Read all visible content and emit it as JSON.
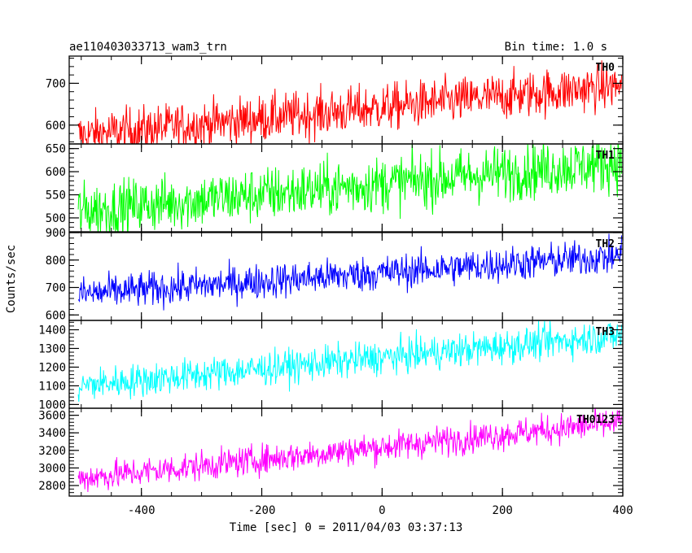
{
  "chart_data": {
    "type": "line",
    "title": "ae110403033713_wam3_trn",
    "bin_time_label": "Bin time: 1.0 s",
    "xlabel": "Time [sec] 0 = 2011/04/03 03:37:13",
    "ylabel": "Counts/sec",
    "xlim": [
      -520,
      400
    ],
    "xticks": [
      -400,
      -200,
      0,
      200,
      400
    ],
    "x_range_data": [
      -505,
      398
    ],
    "panels": [
      {
        "name": "TH0",
        "color": "#ff0000",
        "ylim": [
          555,
          765
        ],
        "yticks": [
          600,
          700
        ],
        "trend_start": 575,
        "trend_end": 695,
        "noise": 28
      },
      {
        "name": "TH1",
        "color": "#00ff00",
        "ylim": [
          470,
          660
        ],
        "yticks": [
          500,
          550,
          600,
          650
        ],
        "trend_start": 515,
        "trend_end": 620,
        "noise": 30
      },
      {
        "name": "TH2",
        "color": "#0000ff",
        "ylim": [
          580,
          900
        ],
        "yticks": [
          600,
          700,
          800,
          900
        ],
        "trend_start": 675,
        "trend_end": 815,
        "noise": 32
      },
      {
        "name": "TH3",
        "color": "#00ffff",
        "ylim": [
          980,
          1450
        ],
        "yticks": [
          1000,
          1100,
          1200,
          1300,
          1400
        ],
        "trend_start": 1100,
        "trend_end": 1370,
        "noise": 45
      },
      {
        "name": "TH0123",
        "color": "#ff00ff",
        "ylim": [
          2680,
          3680
        ],
        "yticks": [
          2800,
          3000,
          3200,
          3400,
          3600
        ],
        "trend_start": 2880,
        "trend_end": 3520,
        "noise": 85
      }
    ]
  }
}
